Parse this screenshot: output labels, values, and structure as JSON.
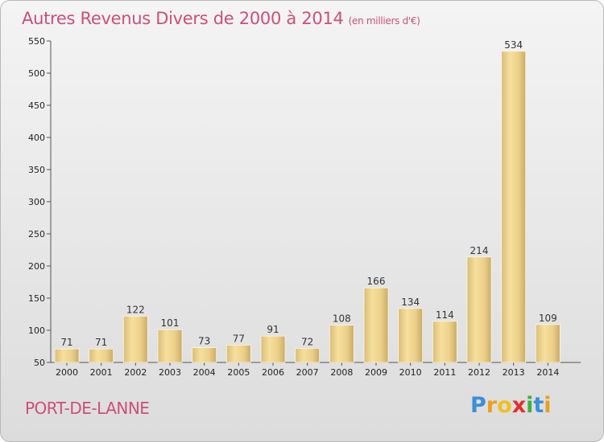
{
  "header": {
    "title": "Autres Revenus Divers de 2000 à 2014",
    "subtitle": "(en milliers d'€)"
  },
  "footer": {
    "commune": "PORT-DE-LANNE",
    "brand_letters": [
      "P",
      "r",
      "o",
      "x",
      "i",
      "t",
      "i"
    ],
    "brand_colors": [
      "#3a8fd8",
      "#e8a020",
      "#f0c020",
      "#e03030",
      "#40b040",
      "#3a8fd8",
      "#e8a020"
    ]
  },
  "colors": {
    "title": "#cc5077",
    "bar_light": "#f4da93",
    "bar_dark": "#c9ab69",
    "axis": "#555555"
  },
  "chart_data": {
    "type": "bar",
    "title": "Autres Revenus Divers de 2000 à 2014",
    "subtitle": "(en milliers d'€)",
    "categories": [
      "2000",
      "2001",
      "2002",
      "2003",
      "2004",
      "2005",
      "2006",
      "2007",
      "2008",
      "2009",
      "2010",
      "2011",
      "2012",
      "2013",
      "2014"
    ],
    "values": [
      71,
      71,
      122,
      101,
      73,
      77,
      91,
      72,
      108,
      166,
      134,
      114,
      214,
      534,
      109
    ],
    "ylim": [
      50,
      550
    ],
    "yticks": [
      50,
      100,
      150,
      200,
      250,
      300,
      350,
      400,
      450,
      500,
      550
    ],
    "grid": false,
    "xlabel": "",
    "ylabel": ""
  }
}
